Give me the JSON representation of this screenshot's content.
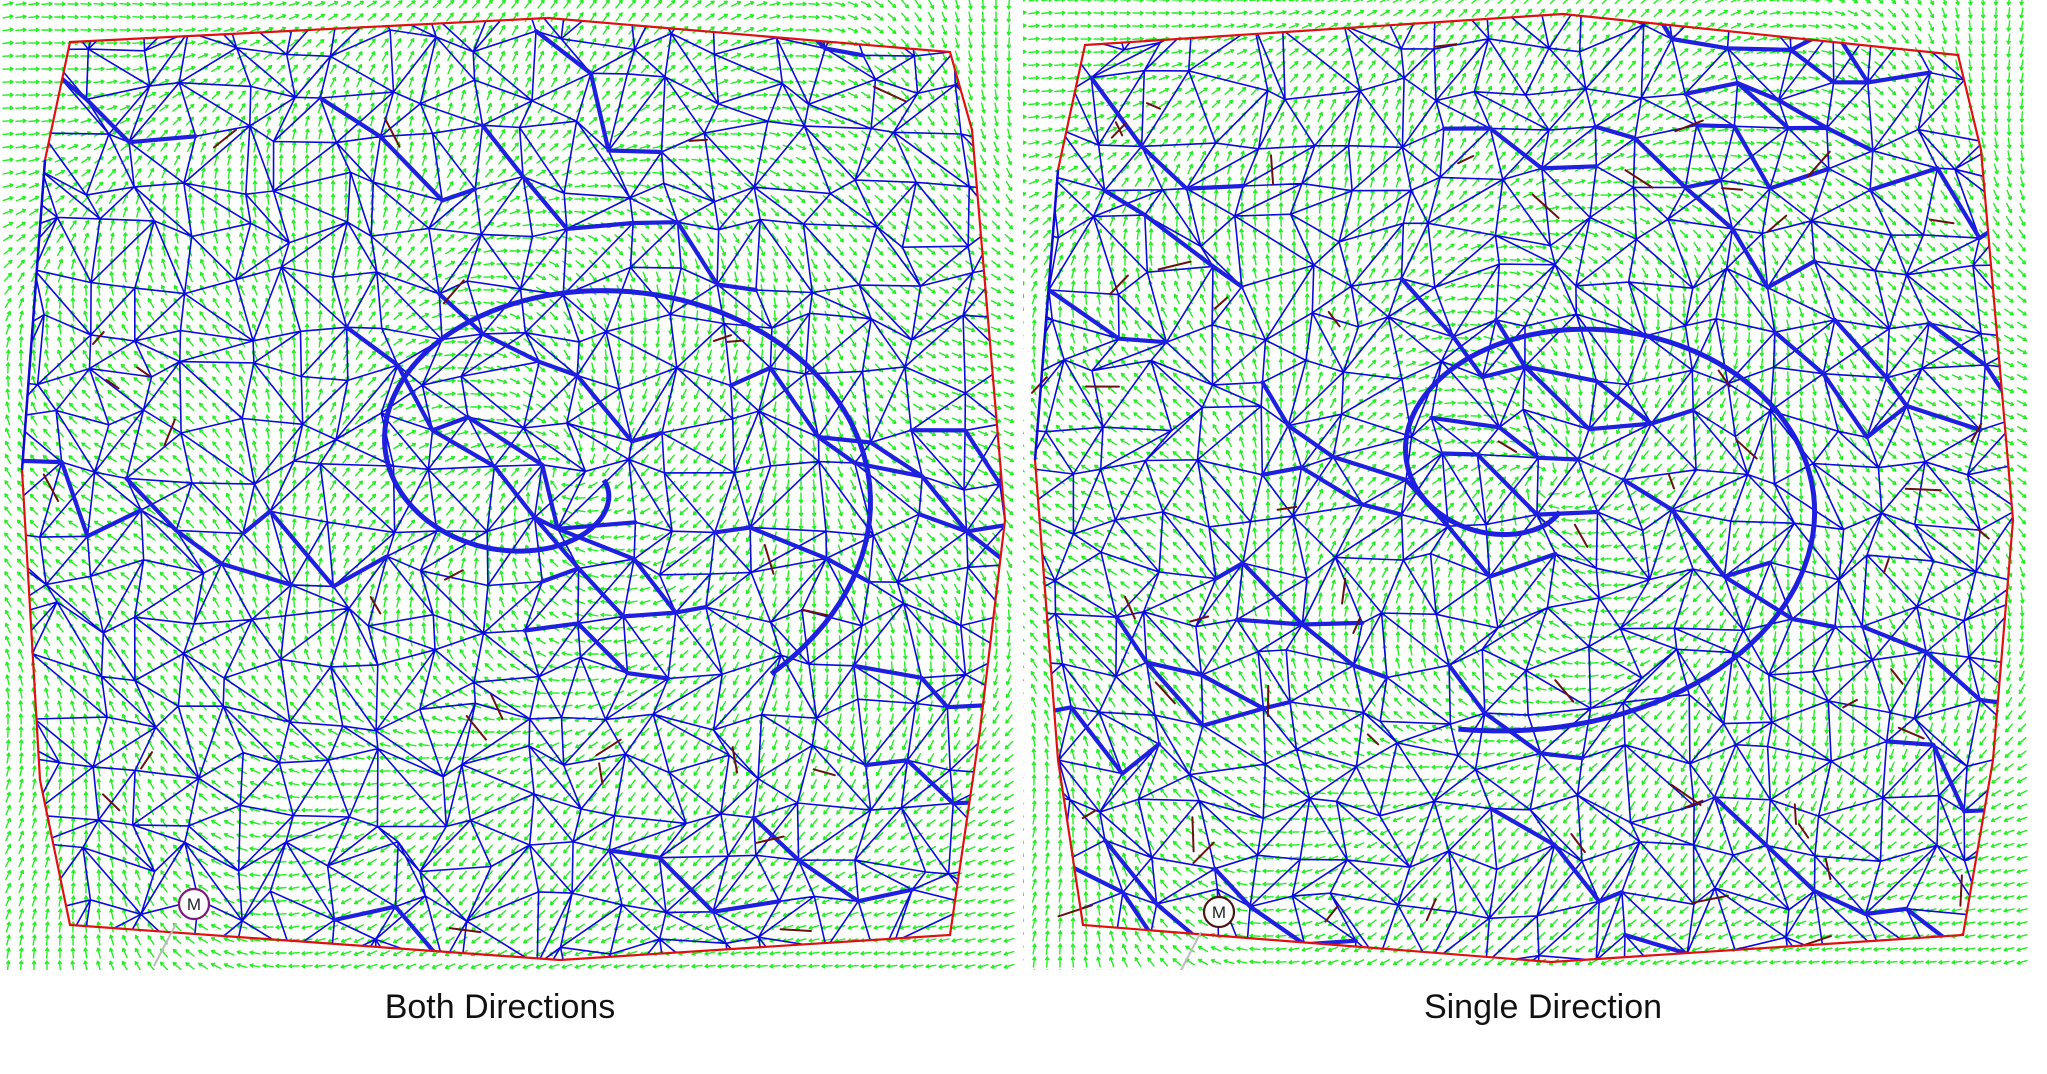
{
  "colors": {
    "field_arrows": "#22ee22",
    "mesh_edges": "#0a0adc",
    "emphasized_edges": "#1f1fe0",
    "boundary": "#e01010",
    "singular_lines": "#6b1010",
    "marker_stroke": "#7a1a7a",
    "background": "#ffffff"
  },
  "marker_label": "M",
  "panels": [
    {
      "id": "both",
      "caption": "Both Directions",
      "marker_label": "M"
    },
    {
      "id": "single",
      "caption": "Single Direction",
      "marker_label": "M"
    }
  ]
}
